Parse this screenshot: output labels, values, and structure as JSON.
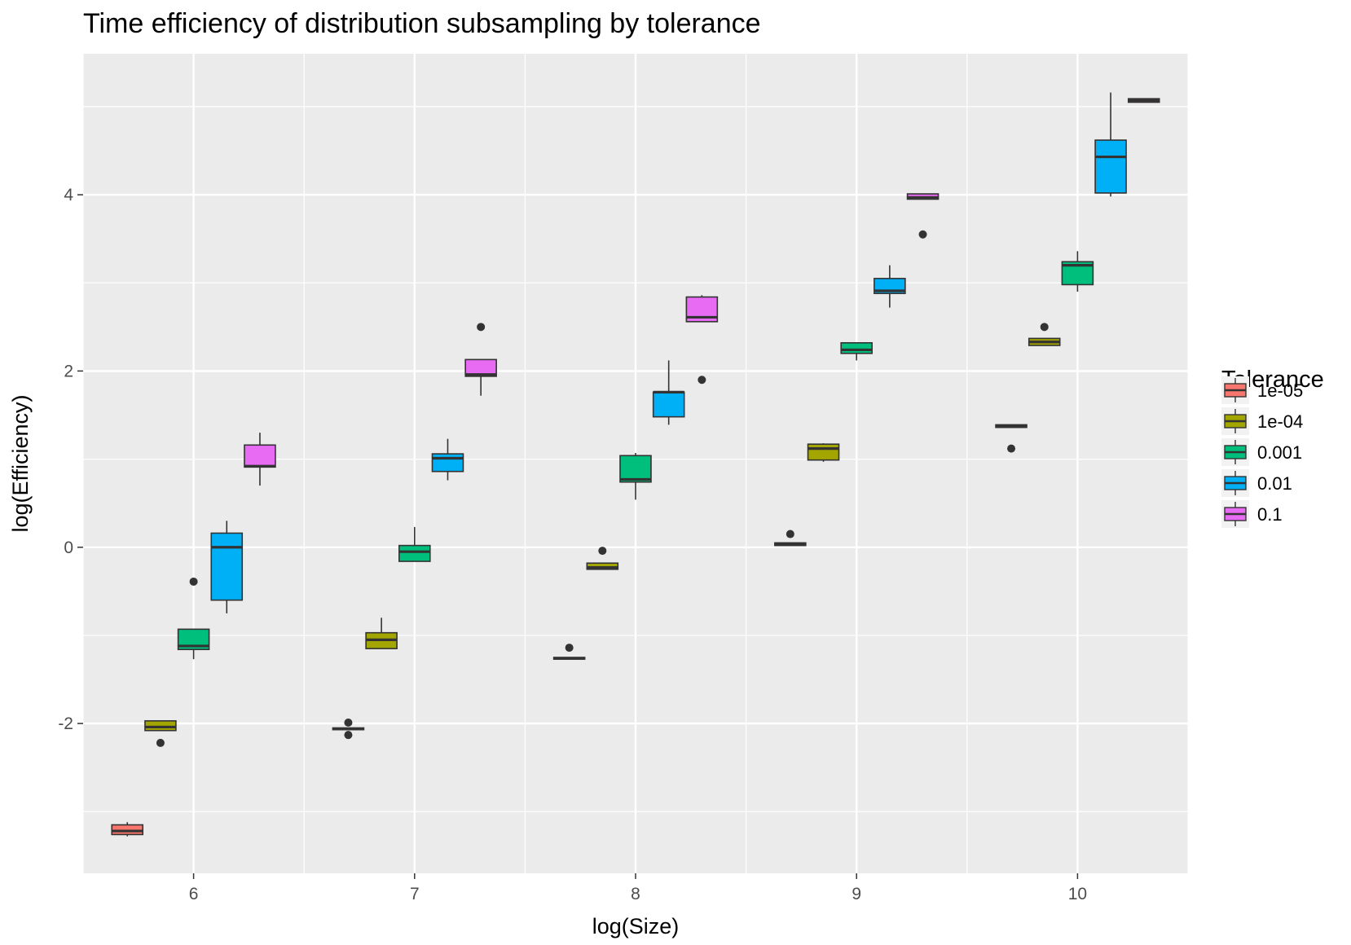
{
  "chart_data": {
    "type": "boxplot",
    "title": "Time efficiency of distribution subsampling by tolerance",
    "xlabel": "log(Size)",
    "ylabel": "log(Efficiency)",
    "xlim": [
      5.5,
      10.5
    ],
    "ylim": [
      -3.7,
      5.6
    ],
    "x_ticks": [
      6,
      7,
      8,
      9,
      10
    ],
    "x_tick_labels": [
      "6",
      "7",
      "8",
      "9",
      "10"
    ],
    "y_ticks": [
      -2,
      0,
      2,
      4
    ],
    "y_tick_labels": [
      "-2",
      "0",
      "2",
      "4"
    ],
    "grid": true,
    "panel_background": "#ebebeb",
    "legend": {
      "title": "Tolerance",
      "position": "right"
    },
    "series": [
      {
        "name": "1e-05",
        "color": "#F8766D",
        "boxes": [
          {
            "x": 5.7,
            "min": -3.28,
            "q1": -3.26,
            "median": -3.22,
            "q3": -3.15,
            "max": -3.12,
            "outliers": []
          },
          {
            "x": 6.7,
            "min": -2.07,
            "q1": -2.07,
            "median": -2.06,
            "q3": -2.05,
            "max": -2.05,
            "outliers": [
              -1.99,
              -2.13
            ]
          },
          {
            "x": 7.7,
            "min": -1.27,
            "q1": -1.27,
            "median": -1.26,
            "q3": -1.25,
            "max": -1.25,
            "outliers": [
              -1.14
            ]
          },
          {
            "x": 8.7,
            "min": 0.02,
            "q1": 0.02,
            "median": 0.03,
            "q3": 0.05,
            "max": 0.05,
            "outliers": [
              0.15
            ]
          },
          {
            "x": 9.7,
            "min": 1.36,
            "q1": 1.36,
            "median": 1.37,
            "q3": 1.39,
            "max": 1.39,
            "outliers": [
              1.12
            ]
          },
          {
            "x": 10.3,
            "min": 5.05,
            "q1": 5.05,
            "median": 5.07,
            "q3": 5.09,
            "max": 5.09,
            "outliers": []
          }
        ]
      },
      {
        "name": "1e-04",
        "color": "#A3A500",
        "boxes": [
          {
            "x": 5.85,
            "min": -2.08,
            "q1": -2.08,
            "median": -2.04,
            "q3": -1.97,
            "max": -1.97,
            "outliers": [
              -2.22
            ]
          },
          {
            "x": 6.85,
            "min": -1.15,
            "q1": -1.15,
            "median": -1.05,
            "q3": -0.97,
            "max": -0.8,
            "outliers": []
          },
          {
            "x": 7.85,
            "min": -0.25,
            "q1": -0.25,
            "median": -0.23,
            "q3": -0.18,
            "max": -0.18,
            "outliers": [
              -0.04
            ]
          },
          {
            "x": 8.85,
            "min": 0.97,
            "q1": 0.99,
            "median": 1.12,
            "q3": 1.17,
            "max": 1.18,
            "outliers": []
          },
          {
            "x": 9.85,
            "min": 2.29,
            "q1": 2.29,
            "median": 2.33,
            "q3": 2.37,
            "max": 2.37,
            "outliers": [
              2.5
            ]
          }
        ]
      },
      {
        "name": "0.001",
        "color": "#00BF7D",
        "boxes": [
          {
            "x": 6.0,
            "min": -1.27,
            "q1": -1.16,
            "median": -1.12,
            "q3": -0.93,
            "max": -0.93,
            "outliers": [
              -0.39
            ]
          },
          {
            "x": 7.0,
            "min": -0.16,
            "q1": -0.16,
            "median": -0.05,
            "q3": 0.02,
            "max": 0.23,
            "outliers": []
          },
          {
            "x": 8.0,
            "min": 0.54,
            "q1": 0.74,
            "median": 0.77,
            "q3": 1.04,
            "max": 1.07,
            "outliers": []
          },
          {
            "x": 9.0,
            "min": 2.12,
            "q1": 2.2,
            "median": 2.24,
            "q3": 2.32,
            "max": 2.32,
            "outliers": []
          },
          {
            "x": 10.0,
            "min": 2.9,
            "q1": 2.98,
            "median": 3.2,
            "q3": 3.24,
            "max": 3.36,
            "outliers": []
          }
        ]
      },
      {
        "name": "0.01",
        "color": "#00B0F6",
        "boxes": [
          {
            "x": 6.15,
            "min": -0.75,
            "q1": -0.6,
            "median": 0.0,
            "q3": 0.16,
            "max": 0.3,
            "outliers": []
          },
          {
            "x": 7.15,
            "min": 0.76,
            "q1": 0.86,
            "median": 1.01,
            "q3": 1.06,
            "max": 1.23,
            "outliers": []
          },
          {
            "x": 8.15,
            "min": 1.39,
            "q1": 1.48,
            "median": 1.76,
            "q3": 1.76,
            "max": 2.12,
            "outliers": []
          },
          {
            "x": 9.15,
            "min": 2.72,
            "q1": 2.88,
            "median": 2.91,
            "q3": 3.05,
            "max": 3.2,
            "outliers": []
          },
          {
            "x": 10.15,
            "min": 3.98,
            "q1": 4.02,
            "median": 4.43,
            "q3": 4.62,
            "max": 5.16,
            "outliers": []
          }
        ]
      },
      {
        "name": "0.1",
        "color": "#E76BF3",
        "boxes": [
          {
            "x": 6.3,
            "min": 0.7,
            "q1": 0.91,
            "median": 0.92,
            "q3": 1.16,
            "max": 1.3,
            "outliers": []
          },
          {
            "x": 7.3,
            "min": 1.72,
            "q1": 1.94,
            "median": 1.96,
            "q3": 2.13,
            "max": 2.13,
            "outliers": [
              2.5
            ]
          },
          {
            "x": 8.3,
            "min": 2.56,
            "q1": 2.56,
            "median": 2.61,
            "q3": 2.84,
            "max": 2.86,
            "outliers": [
              1.9
            ]
          },
          {
            "x": 9.3,
            "min": 3.95,
            "q1": 3.95,
            "median": 3.97,
            "q3": 4.01,
            "max": 4.01,
            "outliers": [
              3.55
            ]
          }
        ]
      }
    ]
  }
}
